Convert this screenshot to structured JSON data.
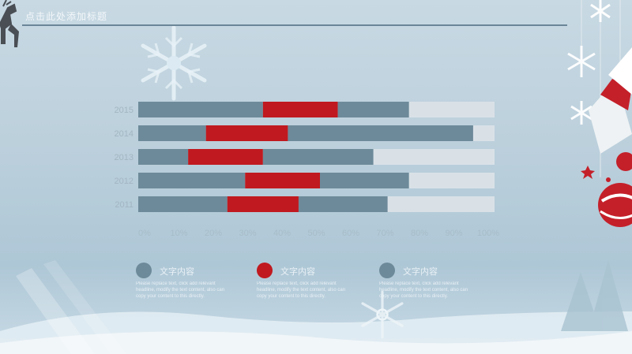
{
  "header": {
    "title": "点击此处添加标题"
  },
  "colors": {
    "background": "#bcd0dc",
    "bar_gray": "#6d8a9a",
    "bar_red": "#c0191f",
    "bar_remain": "#d9e1e7",
    "title_line": "#6b8697"
  },
  "chart_data": {
    "type": "bar",
    "orientation": "horizontal",
    "stacked": true,
    "categories": [
      "2015",
      "2014",
      "2013",
      "2012",
      "2011"
    ],
    "series": [
      {
        "name": "文字内容",
        "color": "#6d8a9a",
        "values": [
          35,
          19,
          14,
          30,
          25
        ]
      },
      {
        "name": "文字内容",
        "color": "#c0191f",
        "values": [
          21,
          23,
          21,
          21,
          20
        ]
      },
      {
        "name": "文字内容",
        "color": "#6d8a9a",
        "values": [
          20,
          52,
          31,
          25,
          25
        ]
      },
      {
        "name": "",
        "color": "#d9e1e7",
        "values": [
          24,
          6,
          34,
          24,
          30
        ]
      }
    ],
    "xlim": [
      0,
      100
    ],
    "x_ticks": [
      "0%",
      "10%",
      "20%",
      "30%",
      "40%",
      "50%",
      "60%",
      "70%",
      "80%",
      "90%",
      "100%"
    ],
    "grid": false,
    "legend": "bottom"
  },
  "legend": [
    {
      "label": "文字内容",
      "color": "#6d8a9a",
      "desc": "Please replace text, click add relevant headline, modify the text content, also can copy your content to this directly."
    },
    {
      "label": "文字内容",
      "color": "#c0191f",
      "desc": "Please replace text, click add relevant headline, modify the text content, also can copy your content to this directly."
    },
    {
      "label": "文字内容",
      "color": "#6d8a9a",
      "desc": "Please replace text, click add relevant headline, modify the text content, also can copy your content to this directly."
    }
  ]
}
